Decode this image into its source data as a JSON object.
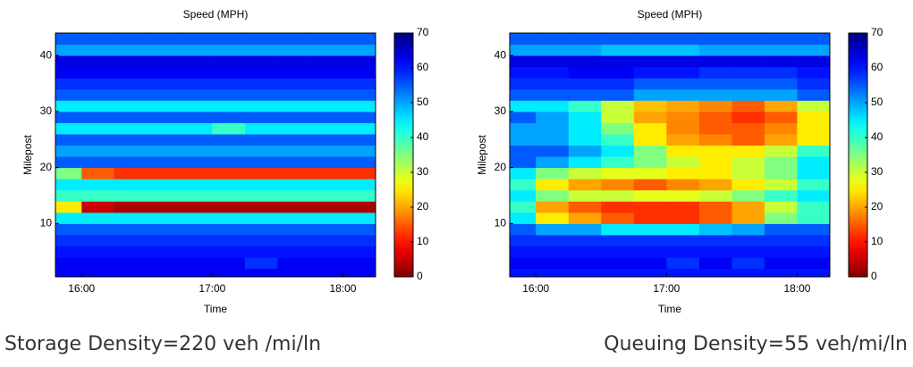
{
  "chart_data": [
    {
      "type": "heatmap",
      "title": "Speed (MPH)",
      "xlabel": "Time",
      "ylabel": "Milepost",
      "caption": "Storage Density=220 veh /mi/ln",
      "colormap": "jet_r",
      "xlim": [
        15.8,
        18.25
      ],
      "ylim": [
        0.5,
        44
      ],
      "xticks": [
        {
          "value": 16,
          "label": "16:00"
        },
        {
          "value": 17,
          "label": "17:00"
        },
        {
          "value": 18,
          "label": "18:00"
        }
      ],
      "yticks": [
        10,
        20,
        30,
        40
      ],
      "colorbar": {
        "lim": [
          0,
          70
        ],
        "ticks": [
          0,
          10,
          20,
          30,
          40,
          50,
          60,
          70
        ]
      },
      "x_edges": [
        15.75,
        16,
        16.25,
        16.5,
        16.75,
        17,
        17.25,
        17.5,
        17.75,
        18,
        18.25
      ],
      "y_edges": [
        0,
        2,
        4,
        6,
        8,
        10,
        12,
        14,
        16,
        18,
        20,
        22,
        24,
        26,
        28,
        30,
        32,
        34,
        36,
        38,
        40,
        42,
        44
      ],
      "z": [
        [
          62,
          62,
          62,
          62,
          62,
          62,
          62,
          62,
          62,
          62
        ],
        [
          62,
          62,
          62,
          62,
          62,
          62,
          58,
          62,
          62,
          62
        ],
        [
          60,
          60,
          60,
          60,
          60,
          60,
          60,
          60,
          60,
          60
        ],
        [
          58,
          58,
          58,
          58,
          58,
          58,
          58,
          58,
          58,
          58
        ],
        [
          55,
          55,
          55,
          55,
          55,
          55,
          55,
          55,
          55,
          55
        ],
        [
          45,
          45,
          45,
          45,
          45,
          45,
          45,
          45,
          45,
          45
        ],
        [
          25,
          5,
          3,
          3,
          3,
          3,
          3,
          3,
          3,
          3
        ],
        [
          40,
          40,
          40,
          40,
          40,
          40,
          40,
          40,
          40,
          40
        ],
        [
          45,
          45,
          45,
          45,
          45,
          45,
          45,
          45,
          45,
          45
        ],
        [
          35,
          15,
          12,
          12,
          12,
          12,
          12,
          12,
          12,
          12
        ],
        [
          55,
          55,
          55,
          55,
          55,
          55,
          55,
          55,
          55,
          55
        ],
        [
          50,
          50,
          50,
          50,
          50,
          50,
          50,
          50,
          50,
          50
        ],
        [
          55,
          55,
          55,
          55,
          55,
          55,
          55,
          55,
          55,
          55
        ],
        [
          45,
          45,
          45,
          45,
          45,
          40,
          45,
          45,
          45,
          45
        ],
        [
          55,
          55,
          55,
          55,
          55,
          55,
          55,
          55,
          55,
          55
        ],
        [
          45,
          45,
          45,
          45,
          45,
          45,
          45,
          45,
          45,
          45
        ],
        [
          55,
          55,
          55,
          55,
          55,
          55,
          55,
          55,
          55,
          55
        ],
        [
          58,
          58,
          58,
          58,
          58,
          58,
          58,
          58,
          58,
          58
        ],
        [
          62,
          62,
          62,
          62,
          62,
          62,
          62,
          62,
          62,
          62
        ],
        [
          63,
          63,
          63,
          63,
          63,
          63,
          63,
          63,
          63,
          63
        ],
        [
          50,
          50,
          50,
          50,
          50,
          50,
          50,
          50,
          50,
          50
        ],
        [
          55,
          55,
          55,
          55,
          55,
          55,
          55,
          55,
          55,
          55
        ]
      ]
    },
    {
      "type": "heatmap",
      "title": "Speed (MPH)",
      "xlabel": "Time",
      "ylabel": "Milepost",
      "caption": "Queuing Density=55 veh/mi/ln",
      "colormap": "jet_r",
      "xlim": [
        15.8,
        18.25
      ],
      "ylim": [
        0.5,
        44
      ],
      "xticks": [
        {
          "value": 16,
          "label": "16:00"
        },
        {
          "value": 17,
          "label": "17:00"
        },
        {
          "value": 18,
          "label": "18:00"
        }
      ],
      "yticks": [
        10,
        20,
        30,
        40
      ],
      "colorbar": {
        "lim": [
          0,
          70
        ],
        "ticks": [
          0,
          10,
          20,
          30,
          40,
          50,
          60,
          70
        ]
      },
      "x_edges": [
        15.75,
        16,
        16.25,
        16.5,
        16.75,
        17,
        17.25,
        17.5,
        17.75,
        18,
        18.25
      ],
      "y_edges": [
        0,
        2,
        4,
        6,
        8,
        10,
        12,
        14,
        16,
        18,
        20,
        22,
        24,
        26,
        28,
        30,
        32,
        34,
        36,
        38,
        40,
        42,
        44
      ],
      "z": [
        [
          60,
          60,
          60,
          60,
          60,
          60,
          60,
          60,
          60,
          60
        ],
        [
          62,
          62,
          62,
          62,
          62,
          58,
          62,
          58,
          62,
          62
        ],
        [
          60,
          60,
          60,
          60,
          60,
          60,
          60,
          60,
          60,
          60
        ],
        [
          58,
          58,
          58,
          58,
          58,
          58,
          58,
          58,
          58,
          58
        ],
        [
          55,
          50,
          50,
          45,
          45,
          45,
          48,
          50,
          55,
          55
        ],
        [
          45,
          25,
          20,
          15,
          12,
          12,
          15,
          20,
          35,
          40
        ],
        [
          40,
          20,
          15,
          12,
          12,
          12,
          15,
          20,
          30,
          40
        ],
        [
          45,
          35,
          30,
          30,
          28,
          28,
          30,
          35,
          40,
          45
        ],
        [
          40,
          25,
          20,
          18,
          15,
          18,
          20,
          25,
          30,
          40
        ],
        [
          45,
          35,
          30,
          28,
          28,
          25,
          25,
          30,
          35,
          45
        ],
        [
          55,
          50,
          45,
          40,
          35,
          30,
          25,
          30,
          35,
          45
        ],
        [
          55,
          55,
          50,
          45,
          35,
          25,
          25,
          25,
          30,
          40
        ],
        [
          50,
          50,
          45,
          40,
          25,
          20,
          18,
          15,
          20,
          25
        ],
        [
          50,
          50,
          45,
          35,
          25,
          18,
          15,
          15,
          18,
          25
        ],
        [
          55,
          50,
          45,
          30,
          20,
          18,
          15,
          12,
          15,
          25
        ],
        [
          45,
          45,
          40,
          30,
          22,
          20,
          18,
          15,
          20,
          30
        ],
        [
          55,
          55,
          55,
          55,
          50,
          50,
          50,
          50,
          50,
          55
        ],
        [
          58,
          58,
          58,
          58,
          55,
          55,
          55,
          55,
          55,
          58
        ],
        [
          60,
          60,
          62,
          62,
          60,
          60,
          58,
          58,
          58,
          60
        ],
        [
          63,
          63,
          63,
          63,
          63,
          63,
          63,
          63,
          63,
          63
        ],
        [
          50,
          50,
          50,
          48,
          48,
          48,
          50,
          50,
          50,
          50
        ],
        [
          55,
          55,
          55,
          55,
          55,
          55,
          55,
          55,
          55,
          55
        ]
      ]
    }
  ]
}
